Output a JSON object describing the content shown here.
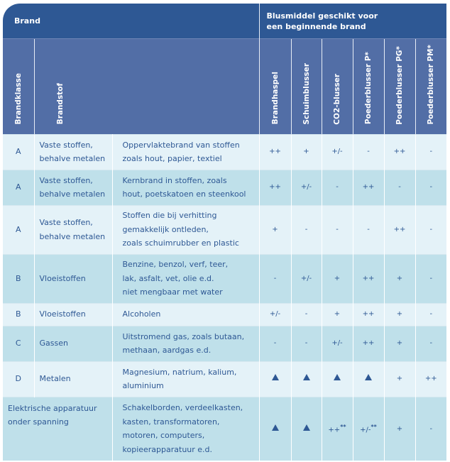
{
  "header": {
    "brand": "Brand",
    "blusmiddel": [
      "Blusmiddel geschikt voor",
      "een beginnende brand"
    ]
  },
  "columns": {
    "brandklasse": "Brandklasse",
    "brandstof": "Brandstof",
    "extinguishers": [
      "Brandhaspel",
      "Schuimblusser",
      "CO2-blusser",
      "Poederblusser P*",
      "Poederblusser PG*",
      "Poederblusser PM*"
    ]
  },
  "rows": [
    {
      "klasse": "A",
      "stof": [
        "Vaste stoffen,",
        "behalve metalen"
      ],
      "omschrijving": [
        "Oppervlaktebrand van stoffen",
        "zoals hout, papier, textiel"
      ],
      "values": [
        "++",
        "+",
        "+/-",
        "-",
        "++",
        "-"
      ]
    },
    {
      "klasse": "A",
      "stof": [
        "Vaste stoffen,",
        "behalve metalen"
      ],
      "omschrijving": [
        "Kernbrand in stoffen, zoals",
        "hout, poetskatoen en steenkool"
      ],
      "values": [
        "++",
        "+/-",
        "-",
        "++",
        "-",
        "-"
      ]
    },
    {
      "klasse": "A",
      "stof": [
        "Vaste stoffen,",
        "behalve metalen"
      ],
      "omschrijving": [
        "Stoffen die bij verhitting",
        "gemakkelijk ontleden,",
        "zoals schuimrubber en plastic"
      ],
      "values": [
        "+",
        "-",
        "-",
        "-",
        "++",
        "-"
      ]
    },
    {
      "klasse": "B",
      "stof": [
        "Vloeistoffen"
      ],
      "omschrijving": [
        "Benzine, benzol, verf, teer,",
        "lak, asfalt, vet, olie e.d.",
        "niet mengbaar met water"
      ],
      "values": [
        "-",
        "+/-",
        "+",
        "++",
        "+",
        "-"
      ]
    },
    {
      "klasse": "B",
      "stof": [
        "Vloeistoffen"
      ],
      "omschrijving": [
        "Alcoholen"
      ],
      "values": [
        "+/-",
        "-",
        "+",
        "++",
        "+",
        "-"
      ]
    },
    {
      "klasse": "C",
      "stof": [
        "Gassen"
      ],
      "omschrijving": [
        "Uitstromend gas, zoals butaan,",
        "methaan, aardgas e.d."
      ],
      "values": [
        "-",
        "-",
        "+/-",
        "++",
        "+",
        "-"
      ]
    },
    {
      "klasse": "D",
      "stof": [
        "Metalen"
      ],
      "omschrijving": [
        "Magnesium, natrium, kalium,",
        "aluminium"
      ],
      "values": [
        "triangle",
        "triangle",
        "triangle",
        "triangle",
        "+",
        "++"
      ]
    },
    {
      "klasse": "",
      "stof": [
        "Elektrische apparatuur",
        "onder spanning"
      ],
      "omschrijving": [
        "Schakelborden, verdeelkasten,",
        "kasten, transformatoren,",
        "motoren, computers,",
        "kopieerapparatuur e.d."
      ],
      "values": [
        "triangle",
        "triangle",
        "++**",
        "+/-**",
        "+",
        "-"
      ]
    }
  ],
  "colors": {
    "header": "#2e5894",
    "subheader": "#526ea6",
    "row_light": "#e4f2f8",
    "row_dark": "#bfe0ea",
    "text": "#2e5894"
  }
}
